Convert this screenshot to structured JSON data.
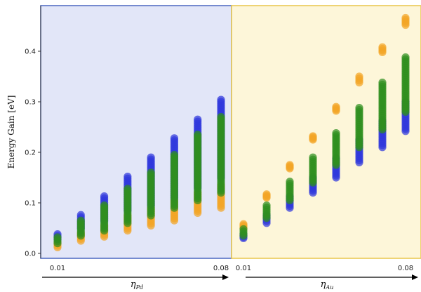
{
  "chart_data": {
    "type": "scatter",
    "ylabel": "Energy Gain [eV]",
    "ylim": [
      0,
      0.48
    ],
    "yticks": [
      0.0,
      0.1,
      0.2,
      0.3,
      0.4
    ],
    "ytick_labels": [
      "0.0",
      "0.1",
      "0.2",
      "0.3",
      "0.4"
    ],
    "grid": false,
    "colors": {
      "blue": "#2f37dd",
      "green": "#2f8f1f",
      "orange": "#f3a526",
      "left_bg": "#e2e6f8",
      "left_border": "#4a66c0",
      "right_bg": "#fdf6d9",
      "right_border": "#e8c64a"
    },
    "panels": [
      {
        "param_symbol": "η",
        "param_subscript": "Pd",
        "x_start_label": "0.01",
        "x_end_label": "0.08",
        "x": [
          0.01,
          0.02,
          0.03,
          0.04,
          0.05,
          0.06,
          0.07,
          0.08
        ],
        "series": [
          {
            "color_key": "orange",
            "min": [
              0.012,
              0.025,
              0.033,
              0.045,
              0.055,
              0.065,
              0.08,
              0.09
            ],
            "max": [
              0.022,
              0.04,
              0.055,
              0.075,
              0.09,
              0.105,
              0.12,
              0.135
            ]
          },
          {
            "color_key": "blue",
            "min": [
              0.028,
              0.05,
              0.065,
              0.085,
              0.095,
              0.11,
              0.13,
              0.15
            ],
            "max": [
              0.038,
              0.076,
              0.113,
              0.152,
              0.19,
              0.228,
              0.265,
              0.304
            ]
          },
          {
            "color_key": "green",
            "min": [
              0.02,
              0.035,
              0.045,
              0.06,
              0.075,
              0.09,
              0.105,
              0.12
            ],
            "max": [
              0.032,
              0.065,
              0.095,
              0.128,
              0.16,
              0.195,
              0.235,
              0.27
            ]
          }
        ]
      },
      {
        "param_symbol": "η",
        "param_subscript": "Au",
        "x_start_label": "0.01",
        "x_end_label": "0.08",
        "x": [
          0.01,
          0.02,
          0.03,
          0.04,
          0.05,
          0.06,
          0.07,
          0.08
        ],
        "series": [
          {
            "color_key": "orange",
            "min": [
              0.05,
              0.11,
              0.168,
              0.225,
              0.282,
              0.338,
              0.398,
              0.452
            ],
            "max": [
              0.058,
              0.117,
              0.175,
              0.232,
              0.29,
              0.35,
              0.408,
              0.466
            ]
          },
          {
            "color_key": "blue",
            "min": [
              0.03,
              0.06,
              0.09,
              0.12,
              0.15,
              0.18,
              0.21,
              0.242
            ],
            "max": [
              0.038,
              0.076,
              0.113,
              0.15,
              0.188,
              0.225,
              0.262,
              0.3
            ]
          },
          {
            "color_key": "green",
            "min": [
              0.035,
              0.07,
              0.105,
              0.14,
              0.175,
              0.21,
              0.245,
              0.28
            ],
            "max": [
              0.048,
              0.095,
              0.142,
              0.19,
              0.238,
              0.288,
              0.338,
              0.388
            ]
          }
        ]
      }
    ]
  }
}
